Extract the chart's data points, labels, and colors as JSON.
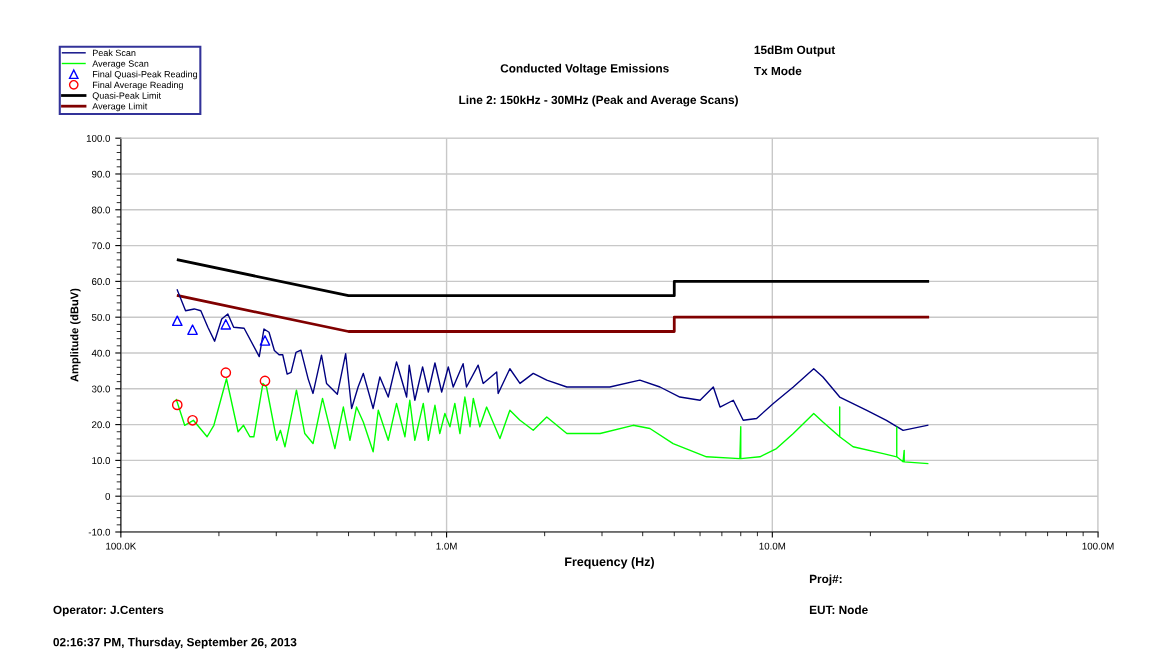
{
  "chart_data": {
    "type": "line",
    "title": "Conducted Voltage Emissions",
    "subtitle": "Line 2: 150kHz - 30MHz (Peak and Average Scans)",
    "xlabel": "Frequency (Hz)",
    "ylabel": "Amplitude (dBuV)",
    "annotations": [
      "15dBm Output",
      "Tx Mode",
      "Proj#:",
      "Operator: J.Centers",
      "EUT: Node",
      "02:16:37 PM, Thursday, September 26, 2013"
    ],
    "log": "x",
    "grid": true,
    "legend": "top left",
    "xlim": [
      100000,
      100000000
    ],
    "xticks": [
      {
        "value": 100000,
        "label": "100.0K"
      },
      {
        "value": 1000000,
        "label": "1.0M"
      },
      {
        "value": 10000000,
        "label": "10.0M"
      },
      {
        "value": 100000000,
        "label": "100.0M"
      }
    ],
    "ylim": [
      -10,
      100
    ],
    "yticks": [
      {
        "value": -10,
        "label": "-10.0"
      },
      0,
      {
        "value": 10,
        "label": "10.0"
      },
      {
        "value": 20,
        "label": "20.0"
      },
      {
        "value": 30,
        "label": "30.0"
      },
      {
        "value": 40,
        "label": "40.0"
      },
      {
        "value": 50,
        "label": "50.0"
      },
      {
        "value": 60,
        "label": "60.0"
      },
      {
        "value": 70,
        "label": "70.0"
      },
      {
        "value": 80,
        "label": "80.0"
      },
      {
        "value": 90,
        "label": "90.0"
      },
      {
        "value": 100,
        "label": "100.0"
      }
    ],
    "series": [
      {
        "name": "Peak Scan",
        "type": "line",
        "color": "#000080",
        "x": [
          149000,
          158000,
          168000,
          176000,
          185000,
          194000,
          204000,
          213000,
          222000,
          239000,
          266000,
          275000,
          285000,
          296000,
          306000,
          314000,
          324000,
          333000,
          345000,
          357000,
          376000,
          389000,
          413000,
          428000,
          462000,
          490000,
          511000,
          535000,
          555000,
          595000,
          624000,
          662000,
          702000,
          754000,
          768000,
          799000,
          844000,
          879000,
          921000,
          966000,
          1012000,
          1048000,
          1124000,
          1151000,
          1250000,
          1295000,
          1425000,
          1440000,
          1564000,
          1680000,
          1845000,
          2030000,
          2340000,
          2750000,
          3170000,
          3920000,
          4520000,
          5200000,
          6000000,
          6590000,
          6910000,
          7590000,
          8140000,
          8950000,
          10070000,
          11600000,
          13400000,
          14300000,
          16100000,
          19500000,
          22400000,
          25200000,
          30000000
        ],
        "values": [
          57.6,
          51.8,
          52.3,
          51.8,
          47.2,
          43.3,
          49.5,
          50.9,
          47.2,
          46.9,
          39.0,
          46.7,
          45.8,
          40.7,
          39.5,
          39.5,
          34.1,
          34.6,
          40.2,
          40.8,
          32.7,
          28.7,
          39.4,
          31.5,
          28.5,
          39.8,
          24.5,
          30.5,
          34.3,
          24.5,
          33.3,
          27.7,
          37.5,
          27.7,
          36.6,
          26.8,
          36.1,
          29.1,
          37.2,
          29.1,
          36.1,
          30.5,
          37.0,
          30.5,
          36.6,
          31.5,
          34.7,
          28.7,
          35.6,
          31.5,
          34.3,
          32.4,
          30.5,
          30.5,
          30.5,
          32.4,
          30.5,
          27.7,
          26.8,
          30.5,
          24.9,
          26.8,
          21.2,
          21.7,
          25.9,
          30.5,
          35.6,
          33.3,
          27.7,
          24.0,
          21.2,
          18.4,
          19.8
        ]
      },
      {
        "name": "Average Scan",
        "type": "line",
        "color": "#00ff00",
        "x": [
          148000,
          157000,
          167000,
          184000,
          193000,
          211000,
          229000,
          238000,
          249000,
          256000,
          273000,
          280000,
          301000,
          309000,
          319000,
          346000,
          367000,
          389000,
          416000,
          454000,
          482000,
          505000,
          529000,
          555000,
          595000,
          617000,
          662000,
          702000,
          745000,
          771000,
          799000,
          848000,
          879000,
          921000,
          953000,
          988000,
          1024000,
          1060000,
          1099000,
          1138000,
          1180000,
          1208000,
          1265000,
          1327000,
          1458000,
          1564000,
          1680000,
          1845000,
          2030000,
          2340000,
          2960000,
          3740000,
          4210000,
          4960000,
          6280000,
          7950000,
          8000000,
          8000000,
          9160000,
          10300000,
          11600000,
          13400000,
          14300000,
          16100000,
          16100000,
          16100000,
          17700000,
          21900000,
          24100000,
          24100000,
          24100000,
          25200000,
          25400000,
          25400000,
          30000000
        ],
        "values": [
          27.0,
          19.8,
          21.2,
          16.6,
          19.8,
          32.8,
          18.0,
          19.8,
          16.6,
          16.6,
          31.5,
          30.5,
          15.6,
          18.4,
          13.8,
          29.6,
          17.5,
          14.7,
          27.3,
          13.3,
          24.9,
          15.6,
          24.9,
          20.7,
          12.4,
          24.0,
          15.6,
          25.9,
          16.6,
          26.8,
          15.6,
          25.9,
          15.6,
          25.4,
          17.5,
          23.1,
          19.4,
          25.9,
          17.5,
          27.7,
          19.4,
          27.3,
          19.4,
          24.9,
          16.1,
          24.0,
          21.2,
          18.4,
          22.1,
          17.5,
          17.5,
          19.8,
          18.9,
          14.7,
          11.0,
          10.5,
          19.4,
          10.5,
          11.0,
          13.3,
          17.5,
          23.1,
          20.7,
          16.6,
          24.9,
          16.6,
          13.8,
          11.9,
          11.0,
          19.3,
          11.0,
          9.6,
          12.8,
          9.6,
          9.1
        ]
      },
      {
        "name": "Final Quasi-Peak Reading",
        "type": "scatter",
        "marker": "triangle",
        "color": "#0000ff",
        "x": [
          149000,
          166000,
          210000,
          277000
        ],
        "values": [
          49.0,
          46.5,
          48.0,
          43.5
        ]
      },
      {
        "name": "Final Average Reading",
        "type": "scatter",
        "marker": "circle",
        "color": "#ff0000",
        "x": [
          149000,
          166000,
          210000,
          277000
        ],
        "values": [
          25.5,
          21.2,
          34.5,
          32.2
        ]
      },
      {
        "name": "Quasi-Peak Limit",
        "type": "line",
        "color": "#000000",
        "x": [
          150000,
          500000,
          5000000,
          5000000,
          30000000
        ],
        "values": [
          66,
          56,
          56,
          60,
          60
        ]
      },
      {
        "name": "Average Limit",
        "type": "line",
        "color": "#800000",
        "x": [
          150000,
          500000,
          5000000,
          5000000,
          30000000
        ],
        "values": [
          56,
          46,
          46,
          50,
          50
        ]
      }
    ]
  }
}
